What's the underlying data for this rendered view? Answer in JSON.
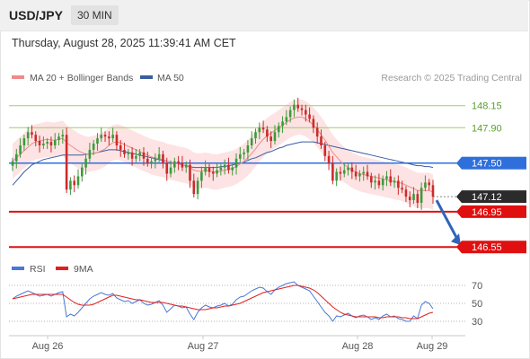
{
  "header": {
    "symbol": "USD/JPY",
    "timeframe": "30 MIN",
    "datetime": "Thursday, August 28, 2025 11:39:41 AM CET"
  },
  "legend": {
    "ma20_label": "MA 20 + Bollinger Bands",
    "ma50_label": "MA 50",
    "ma20_color": "#f08a8a",
    "ma50_color": "#3a5da0",
    "copyright": "Research © 2025 Trading Central"
  },
  "rsi_legend": {
    "rsi_label": "RSI",
    "ma_label": "9MA",
    "rsi_color": "#4a78d4",
    "ma_color": "#e02020"
  },
  "colors": {
    "bull": "#3c9a3c",
    "bear": "#cc2a2a",
    "resistance": "#9ccf6b",
    "pivot": "#2f6fdc",
    "support": "#e01010",
    "current": "#2b2b2b",
    "band_fill": "#fde3e3",
    "arrow": "#2f64b8"
  },
  "chart_data": [
    {
      "type": "candlestick",
      "symbol": "USD/JPY",
      "timeframe": "30 MIN",
      "ylim": [
        146.4,
        148.35
      ],
      "x_tick_labels": [
        "Aug 26",
        "Aug 27",
        "Aug 28",
        "Aug 29"
      ],
      "levels": [
        {
          "label": "148.15",
          "value": 148.15,
          "kind": "resistance"
        },
        {
          "label": "147.90",
          "value": 147.9,
          "kind": "resistance"
        },
        {
          "label": "147.50",
          "value": 147.5,
          "kind": "pivot"
        },
        {
          "label": "147.12",
          "value": 147.12,
          "kind": "current"
        },
        {
          "label": "146.95",
          "value": 146.95,
          "kind": "support"
        },
        {
          "label": "146.55",
          "value": 146.55,
          "kind": "support"
        }
      ],
      "closes": [
        147.52,
        147.6,
        147.7,
        147.78,
        147.85,
        147.82,
        147.75,
        147.7,
        147.72,
        147.74,
        147.7,
        147.76,
        147.8,
        147.82,
        147.2,
        147.3,
        147.25,
        147.35,
        147.45,
        147.55,
        147.65,
        147.72,
        147.78,
        147.82,
        147.8,
        147.78,
        147.82,
        147.7,
        147.65,
        147.6,
        147.62,
        147.55,
        147.58,
        147.62,
        147.55,
        147.5,
        147.52,
        147.55,
        147.6,
        147.5,
        147.38,
        147.45,
        147.52,
        147.5,
        147.45,
        147.48,
        147.3,
        147.15,
        147.3,
        147.4,
        147.45,
        147.4,
        147.38,
        147.42,
        147.45,
        147.48,
        147.42,
        147.45,
        147.55,
        147.6,
        147.62,
        147.7,
        147.78,
        147.85,
        147.9,
        147.88,
        147.8,
        147.75,
        147.85,
        147.92,
        147.97,
        148.02,
        148.1,
        148.16,
        148.12,
        148.1,
        148.05,
        148.0,
        147.9,
        147.8,
        147.7,
        147.58,
        147.5,
        147.3,
        147.4,
        147.38,
        147.42,
        147.45,
        147.4,
        147.35,
        147.38,
        147.4,
        147.35,
        147.28,
        147.3,
        147.25,
        147.32,
        147.35,
        147.28,
        147.3,
        147.22,
        147.2,
        147.12,
        147.08,
        147.15,
        147.05,
        147.22,
        147.28,
        147.25,
        147.12
      ],
      "ma20": [
        147.52,
        147.56,
        147.6,
        147.64,
        147.68,
        147.72,
        147.74,
        147.75,
        147.76,
        147.77,
        147.76,
        147.76,
        147.77,
        147.78,
        147.73,
        147.7,
        147.67,
        147.64,
        147.62,
        147.6,
        147.6,
        147.61,
        147.62,
        147.64,
        147.66,
        147.7,
        147.73,
        147.74,
        147.73,
        147.71,
        147.69,
        147.67,
        147.65,
        147.63,
        147.61,
        147.59,
        147.57,
        147.56,
        147.55,
        147.54,
        147.52,
        147.51,
        147.5,
        147.49,
        147.48,
        147.47,
        147.45,
        147.42,
        147.41,
        147.41,
        147.42,
        147.41,
        147.4,
        147.4,
        147.41,
        147.42,
        147.43,
        147.44,
        147.46,
        147.49,
        147.52,
        147.56,
        147.61,
        147.66,
        147.72,
        147.77,
        147.81,
        147.84,
        147.87,
        147.9,
        147.93,
        147.96,
        147.99,
        148.01,
        148.02,
        148.02,
        148.0,
        147.97,
        147.93,
        147.88,
        147.82,
        147.76,
        147.69,
        147.62,
        147.57,
        147.52,
        147.48,
        147.45,
        147.42,
        147.4,
        147.38,
        147.37,
        147.36,
        147.35,
        147.34,
        147.33,
        147.32,
        147.31,
        147.3,
        147.29,
        147.28,
        147.27,
        147.25,
        147.23,
        147.21,
        147.19,
        147.19,
        147.19,
        147.19,
        147.17
      ],
      "bollinger_width": 0.2,
      "ma50": [
        147.25,
        147.3,
        147.35,
        147.4,
        147.44,
        147.48,
        147.5,
        147.52,
        147.54,
        147.55,
        147.56,
        147.57,
        147.58,
        147.59,
        147.59,
        147.59,
        147.59,
        147.59,
        147.59,
        147.6,
        147.6,
        147.61,
        147.62,
        147.63,
        147.64,
        147.65,
        147.65,
        147.65,
        147.64,
        147.63,
        147.62,
        147.61,
        147.6,
        147.59,
        147.58,
        147.57,
        147.56,
        147.55,
        147.54,
        147.53,
        147.52,
        147.51,
        147.5,
        147.49,
        147.48,
        147.47,
        147.46,
        147.45,
        147.45,
        147.45,
        147.45,
        147.45,
        147.45,
        147.45,
        147.46,
        147.46,
        147.47,
        147.48,
        147.49,
        147.5,
        147.51,
        147.53,
        147.55,
        147.56,
        147.58,
        147.6,
        147.62,
        147.63,
        147.65,
        147.67,
        147.68,
        147.7,
        147.71,
        147.72,
        147.73,
        147.74,
        147.74,
        147.74,
        147.74,
        147.73,
        147.72,
        147.71,
        147.7,
        147.69,
        147.68,
        147.67,
        147.66,
        147.65,
        147.64,
        147.63,
        147.62,
        147.61,
        147.6,
        147.59,
        147.58,
        147.57,
        147.56,
        147.55,
        147.54,
        147.53,
        147.52,
        147.51,
        147.5,
        147.49,
        147.48,
        147.47,
        147.47,
        147.46,
        147.46,
        147.45
      ],
      "forecast_target": 146.55
    },
    {
      "type": "line",
      "name": "RSI",
      "ylim": [
        20,
        80
      ],
      "y_tick_labels": [
        "70",
        "50",
        "30"
      ],
      "y_ticks": [
        70,
        50,
        30
      ],
      "rsi": [
        55,
        58,
        60,
        62,
        64,
        62,
        60,
        58,
        59,
        60,
        58,
        60,
        62,
        63,
        35,
        38,
        36,
        40,
        45,
        50,
        55,
        58,
        60,
        62,
        60,
        59,
        61,
        56,
        54,
        52,
        53,
        50,
        52,
        54,
        50,
        48,
        49,
        51,
        53,
        48,
        40,
        44,
        48,
        47,
        45,
        46,
        38,
        32,
        40,
        45,
        48,
        46,
        45,
        47,
        48,
        50,
        47,
        49,
        54,
        57,
        58,
        61,
        64,
        66,
        68,
        67,
        63,
        60,
        65,
        68,
        70,
        72,
        73,
        74,
        70,
        68,
        66,
        64,
        58,
        52,
        46,
        40,
        36,
        30,
        36,
        35,
        37,
        39,
        36,
        34,
        36,
        37,
        35,
        32,
        34,
        32,
        36,
        38,
        35,
        36,
        33,
        32,
        30,
        30,
        36,
        33,
        48,
        52,
        50,
        44
      ],
      "rsi_ma": [
        55,
        56,
        57,
        58,
        59,
        60,
        60,
        60,
        60,
        60,
        60,
        60,
        60,
        60,
        57,
        54,
        51,
        49,
        48,
        48,
        48,
        49,
        51,
        53,
        55,
        57,
        59,
        59,
        58,
        57,
        56,
        55,
        54,
        54,
        53,
        52,
        51,
        51,
        51,
        51,
        50,
        49,
        48,
        47,
        47,
        46,
        45,
        44,
        43,
        43,
        43,
        44,
        45,
        45,
        46,
        47,
        47,
        48,
        49,
        50,
        52,
        54,
        56,
        58,
        60,
        62,
        63,
        64,
        65,
        66,
        67,
        68,
        69,
        70,
        70,
        69,
        68,
        67,
        65,
        62,
        58,
        54,
        50,
        46,
        43,
        40,
        38,
        37,
        36,
        35,
        35,
        35,
        35,
        35,
        35,
        34,
        34,
        35,
        35,
        35,
        35,
        34,
        34,
        33,
        33,
        33,
        35,
        37,
        39,
        40
      ]
    }
  ]
}
